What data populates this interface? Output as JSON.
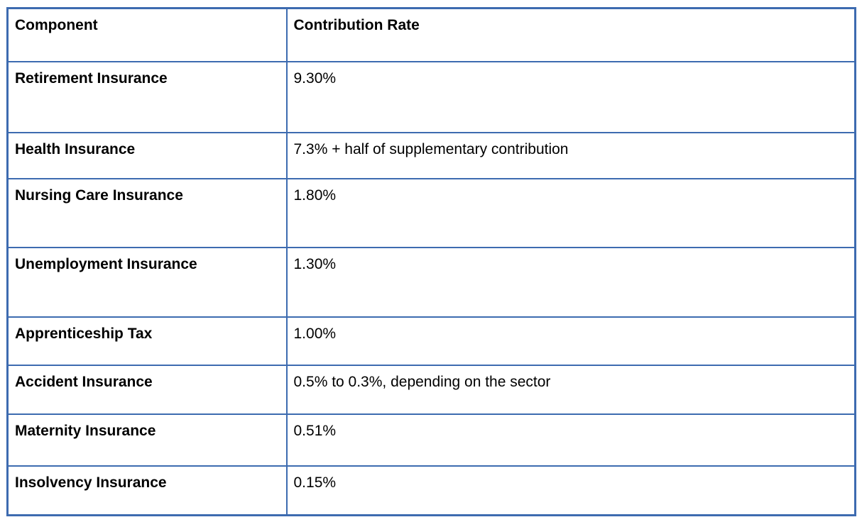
{
  "table": {
    "border_color": "#3d6bb0",
    "columns": {
      "component": "Component",
      "rate": "Contribution Rate"
    },
    "rows": [
      {
        "component": "Retirement Insurance",
        "rate": "9.30%"
      },
      {
        "component": "Health Insurance",
        "rate": "7.3% + half of supplementary contribution"
      },
      {
        "component": "Nursing Care Insurance",
        "rate": "1.80%"
      },
      {
        "component": "Unemployment Insurance",
        "rate": "1.30%"
      },
      {
        "component": "Apprenticeship Tax",
        "rate": "1.00%"
      },
      {
        "component": "Accident Insurance",
        "rate": "0.5% to 0.3%, depending on the sector"
      },
      {
        "component": "Maternity Insurance",
        "rate": "0.51%"
      },
      {
        "component": "Insolvency Insurance",
        "rate": "0.15%"
      }
    ]
  }
}
